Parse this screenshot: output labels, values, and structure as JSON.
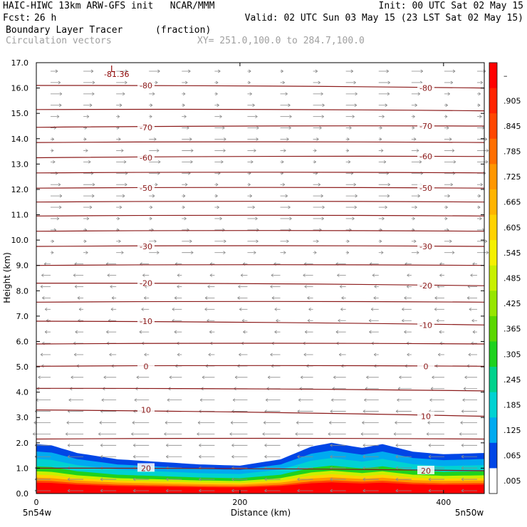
{
  "header": {
    "model_line": "HAIC-HIWC 13km ARW-GFS init   NCAR/MMM",
    "init_line": "Init: 00 UTC Sat 02 May 15",
    "fcst_label": "Fcst:",
    "fcst_value": "26 h",
    "valid_line": "Valid: 02 UTC Sun 03 May 15 (23 LST Sat 02 May 15)",
    "field_name": "Boundary Layer Tracer",
    "field_units": "(fraction)",
    "vector_label": "Circulation vectors",
    "xsec_label": "XY= 251.0,100.0 to 284.7,100.0"
  },
  "chart_data": {
    "type": "heatmap",
    "ylabel": "Height (km)",
    "xlabel": "Distance (km)",
    "xlim": [
      0,
      440
    ],
    "ylim": [
      0,
      17
    ],
    "y_ticks": [
      "0.0",
      "1.0",
      "2.0",
      "3.0",
      "4.0",
      "5.0",
      "6.0",
      "7.0",
      "8.0",
      "9.0",
      "10.0",
      "11.0",
      "12.0",
      "13.0",
      "14.0",
      "15.0",
      "16.0",
      "17.0"
    ],
    "x_ticks": [
      0,
      200,
      400
    ],
    "x_tick_labels": [
      "0",
      "200",
      "400"
    ],
    "left_endpoint_label": "5n54w",
    "right_endpoint_label": "5n50w",
    "colorbar_labels": [
      "–",
      ".905",
      ".845",
      ".785",
      ".725",
      ".665",
      ".605",
      ".545",
      ".485",
      ".425",
      ".365",
      ".305",
      ".245",
      ".185",
      ".125",
      ".065",
      ".005"
    ],
    "colorbar_colors": [
      "#ff0000",
      "#ff2300",
      "#ff4600",
      "#ff6e00",
      "#ff9600",
      "#ffb400",
      "#ffd200",
      "#f5f000",
      "#c8f000",
      "#96e600",
      "#5ad700",
      "#1ed21e",
      "#00d28c",
      "#00d2d2",
      "#00aaf0",
      "#0046e6",
      "#ffffff"
    ],
    "contours": [
      {
        "label": "-80",
        "height_km": 16.1,
        "tilt_km": -0.1
      },
      {
        "label": "",
        "height_km": 15.15,
        "tilt_km": -0.05
      },
      {
        "label": "-70",
        "height_km": 14.45,
        "tilt_km": 0.05
      },
      {
        "label": "",
        "height_km": 13.85,
        "tilt_km": 0.0
      },
      {
        "label": "-60",
        "height_km": 13.25,
        "tilt_km": 0.05
      },
      {
        "label": "",
        "height_km": 12.65,
        "tilt_km": 0.0
      },
      {
        "label": "-50",
        "height_km": 12.05,
        "tilt_km": 0.0
      },
      {
        "label": "",
        "height_km": 11.5,
        "tilt_km": 0.0
      },
      {
        "label": "",
        "height_km": 10.95,
        "tilt_km": 0.0
      },
      {
        "label": "",
        "height_km": 10.35,
        "tilt_km": 0.0
      },
      {
        "label": "-30",
        "height_km": 9.75,
        "tilt_km": 0.0
      },
      {
        "label": "",
        "height_km": 9.0,
        "tilt_km": 0.0
      },
      {
        "label": "-20",
        "height_km": 8.3,
        "tilt_km": -0.1
      },
      {
        "label": "",
        "height_km": 7.55,
        "tilt_km": 0.0
      },
      {
        "label": "-10",
        "height_km": 6.8,
        "tilt_km": -0.15
      },
      {
        "label": "",
        "height_km": 5.9,
        "tilt_km": 0.0
      },
      {
        "label": "0",
        "height_km": 5.02,
        "tilt_km": 0.0
      },
      {
        "label": "",
        "height_km": 4.15,
        "tilt_km": -0.1
      },
      {
        "label": "10",
        "height_km": 3.3,
        "tilt_km": -0.25
      },
      {
        "label": "",
        "height_km": 2.15,
        "tilt_km": 0.0
      },
      {
        "label": "20",
        "height_km": 1.0,
        "tilt_km": -0.1
      }
    ],
    "min_label": "L",
    "min_value": "-81.36",
    "field_top_profile": [
      [
        0,
        1.95
      ],
      [
        15,
        1.9
      ],
      [
        40,
        1.6
      ],
      [
        80,
        1.35
      ],
      [
        120,
        1.25
      ],
      [
        160,
        1.15
      ],
      [
        200,
        1.1
      ],
      [
        240,
        1.35
      ],
      [
        270,
        1.85
      ],
      [
        290,
        2.0
      ],
      [
        320,
        1.8
      ],
      [
        340,
        1.95
      ],
      [
        370,
        1.65
      ],
      [
        400,
        1.55
      ],
      [
        440,
        1.6
      ]
    ],
    "field_layers": [
      {
        "color": "#0046e6",
        "fraction": 1.0
      },
      {
        "color": "#00aaf0",
        "fraction": 0.85
      },
      {
        "color": "#00d2d2",
        "fraction": 0.7
      },
      {
        "color": "#1ed21e",
        "fraction": 0.55
      },
      {
        "color": "#c8f000",
        "fraction": 0.45
      },
      {
        "color": "#ffd200",
        "fraction": 0.38
      },
      {
        "color": "#ff9600",
        "fraction": 0.32
      },
      {
        "color": "#ff4600",
        "fraction": 0.26
      },
      {
        "color": "#ff0000",
        "fraction": 0.22
      }
    ]
  }
}
